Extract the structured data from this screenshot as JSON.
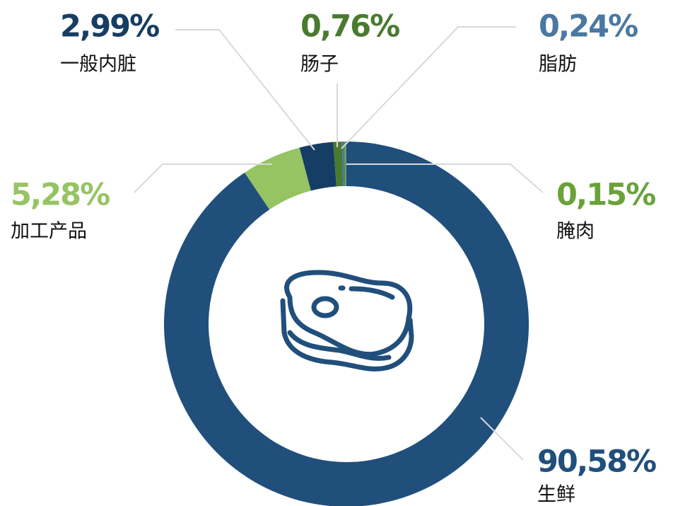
{
  "chart_data": {
    "type": "pie",
    "donut": true,
    "categories": [
      "生鲜",
      "加工产品",
      "一般内脏",
      "肠子",
      "脂肪",
      "腌肉"
    ],
    "values": [
      90.58,
      5.28,
      2.99,
      0.76,
      0.24,
      0.15
    ],
    "value_labels": [
      "90,58%",
      "5,28%",
      "2,99%",
      "0,76%",
      "0,24%",
      "0,15%"
    ],
    "colors": [
      "#214f7c",
      "#96c462",
      "#163d63",
      "#4a7a30",
      "#4a78a0",
      "#6aa23a"
    ]
  }
}
